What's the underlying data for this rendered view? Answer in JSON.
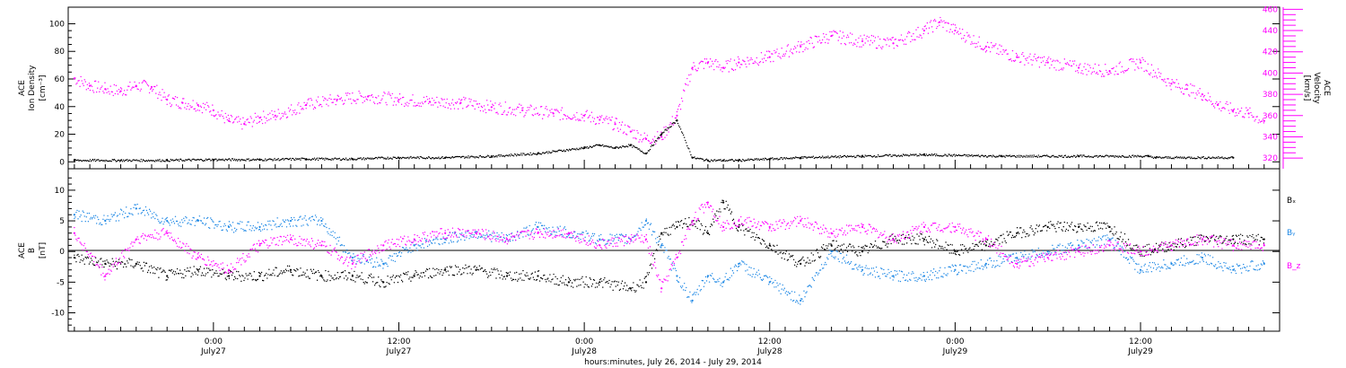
{
  "colors": {
    "density": "#000000",
    "velocity": "#ff00ff",
    "bx": "#000000",
    "by": "#1e88e5",
    "bz": "#ff00ff"
  },
  "top_panel": {
    "left_axis_label": [
      "ACE",
      "Ion Density",
      "[cm⁻³]"
    ],
    "right_axis_label": [
      "ACE",
      "Velocity",
      "[km/s]"
    ]
  },
  "bottom_panel": {
    "left_axis_label": [
      "ACE",
      "B",
      "[nT]"
    ],
    "legend": [
      "Bₓ",
      "Bᵧ",
      "B_z"
    ]
  },
  "x_axis": {
    "title": "hours:minutes, July 26, 2014 - July 29, 2014",
    "tick_labels": [
      {
        "time": "0:00",
        "date": "July27"
      },
      {
        "time": "12:00",
        "date": "July27"
      },
      {
        "time": "0:00",
        "date": "July28"
      },
      {
        "time": "12:00",
        "date": "July28"
      },
      {
        "time": "0:00",
        "date": "July29"
      },
      {
        "time": "12:00",
        "date": "July29"
      }
    ]
  },
  "chart_data": [
    {
      "type": "scatter",
      "panel": "top",
      "x_unit": "hours since 2014-07-26 00:00 UT",
      "xlim": [
        14.6,
        93.0
      ],
      "ylim_left": [
        -5,
        112
      ],
      "ylim_right": [
        310,
        462
      ],
      "yticks_left": [
        0,
        20,
        40,
        60,
        80,
        100
      ],
      "yticks_right": [
        320,
        340,
        360,
        380,
        400,
        420,
        440,
        460
      ],
      "series": [
        {
          "name": "Ion Density",
          "axis": "left",
          "x": [
            15,
            18,
            21,
            24,
            27,
            30,
            33,
            36,
            39,
            42,
            45,
            48,
            49,
            50,
            51,
            52,
            53,
            54,
            55,
            56,
            57,
            58,
            60,
            62,
            66,
            70,
            75,
            80,
            85,
            90,
            84.5
          ],
          "y": [
            1,
            1,
            1,
            1.5,
            1.5,
            2,
            2,
            3,
            3,
            4,
            6,
            10,
            12,
            10,
            12,
            6,
            20,
            30,
            3,
            1,
            1,
            1,
            2,
            3,
            4,
            5,
            4,
            4,
            3,
            3,
            4
          ]
        },
        {
          "name": "Velocity",
          "axis": "right",
          "x": [
            15,
            16,
            17,
            18,
            19,
            20,
            21,
            22,
            23,
            24,
            25,
            26,
            27,
            28,
            30,
            32,
            34,
            36,
            38,
            40,
            42,
            44,
            46,
            48,
            49,
            50,
            51,
            52,
            53,
            54,
            55,
            56,
            57,
            58,
            60,
            62,
            64,
            66,
            68,
            70,
            71,
            72,
            74,
            76,
            78,
            80,
            82,
            84,
            86,
            87,
            88,
            89,
            90,
            91,
            92
          ],
          "y": [
            395,
            388,
            385,
            383,
            388,
            387,
            375,
            372,
            370,
            365,
            355,
            352,
            358,
            360,
            370,
            375,
            378,
            375,
            373,
            372,
            368,
            365,
            362,
            360,
            356,
            352,
            345,
            338,
            340,
            360,
            405,
            410,
            405,
            410,
            415,
            425,
            435,
            430,
            428,
            440,
            448,
            440,
            425,
            415,
            410,
            405,
            402,
            410,
            390,
            385,
            380,
            370,
            365,
            362,
            355
          ]
        }
      ]
    },
    {
      "type": "scatter",
      "panel": "bottom",
      "x_unit": "hours since 2014-07-26 00:00 UT",
      "xlim": [
        14.6,
        93.0
      ],
      "ylim": [
        -13,
        13.5
      ],
      "yticks": [
        -10,
        -5,
        0,
        5,
        10
      ],
      "zero_line": true,
      "series": [
        {
          "name": "Bₓ",
          "x": [
            15,
            17,
            19,
            21,
            23,
            25,
            27,
            29,
            31,
            33,
            35,
            37,
            39,
            41,
            43,
            45,
            47,
            49,
            51,
            52,
            53,
            54,
            55,
            56,
            57,
            58,
            60,
            62,
            64,
            66,
            68,
            70,
            72,
            74,
            76,
            78,
            80,
            82,
            84,
            86,
            88,
            90,
            92
          ],
          "y": [
            -1,
            -2,
            -2,
            -4,
            -3,
            -4,
            -4,
            -3,
            -4,
            -4,
            -5,
            -4,
            -3,
            -3,
            -4,
            -4,
            -5,
            -5,
            -6,
            -5,
            3,
            4,
            5,
            3,
            8,
            4,
            1,
            -2,
            1,
            0,
            2,
            2,
            0,
            1,
            3,
            4,
            4,
            4,
            0,
            1,
            2,
            2,
            2
          ]
        },
        {
          "name": "Bᵧ",
          "x": [
            15,
            17,
            19,
            21,
            23,
            25,
            27,
            29,
            31,
            33,
            35,
            37,
            39,
            41,
            43,
            45,
            47,
            49,
            51,
            52,
            53,
            54,
            55,
            56,
            57,
            58,
            60,
            62,
            64,
            66,
            68,
            70,
            72,
            74,
            76,
            78,
            80,
            82,
            84,
            86,
            88,
            90,
            92
          ],
          "y": [
            6,
            5,
            7,
            5,
            5,
            4,
            4,
            5,
            5,
            -1,
            -2,
            1,
            2,
            3,
            2,
            4,
            3,
            2,
            2,
            5,
            1,
            -4,
            -8,
            -4,
            -5,
            -2,
            -5,
            -8,
            0,
            -3,
            -4,
            -4,
            -3,
            -2,
            -1,
            0,
            1,
            2,
            -3,
            -2,
            -1,
            -3,
            -2
          ]
        },
        {
          "name": "B_z",
          "x": [
            15,
            17,
            19,
            21,
            23,
            25,
            27,
            29,
            31,
            33,
            35,
            37,
            39,
            41,
            43,
            45,
            47,
            49,
            51,
            52,
            53,
            54,
            55,
            56,
            57,
            58,
            60,
            62,
            64,
            66,
            68,
            70,
            72,
            74,
            76,
            78,
            80,
            82,
            84,
            86,
            88,
            90,
            92
          ],
          "y": [
            3,
            -4,
            2,
            3,
            -1,
            -3,
            1,
            2,
            1,
            -2,
            1,
            2,
            3,
            3,
            2,
            3,
            3,
            1,
            2,
            2,
            -6,
            -1,
            5,
            8,
            4,
            5,
            4,
            5,
            3,
            4,
            2,
            4,
            4,
            2,
            -2,
            -1,
            0,
            1,
            0,
            1,
            2,
            1,
            1
          ]
        }
      ]
    }
  ]
}
